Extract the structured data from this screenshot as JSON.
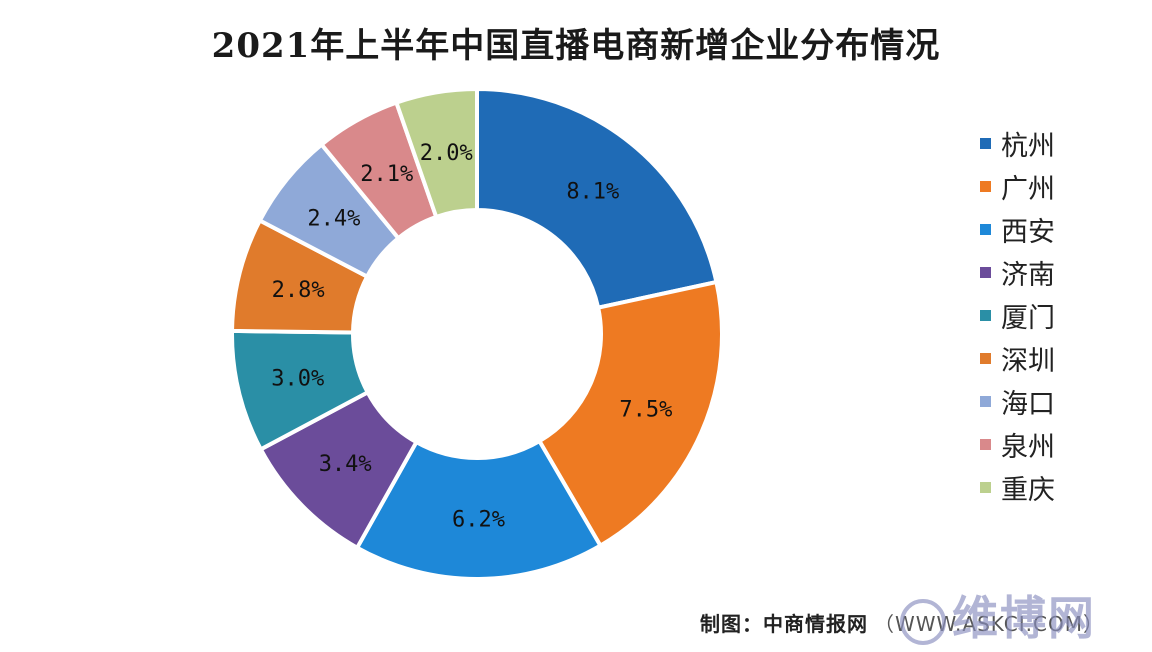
{
  "chart_data": {
    "type": "pie",
    "title": "2021年上半年中国直播电商新增企业分布情况",
    "categories": [
      "杭州",
      "广州",
      "西安",
      "济南",
      "厦门",
      "深圳",
      "海口",
      "泉州",
      "重庆"
    ],
    "values": [
      8.1,
      7.5,
      6.2,
      3.4,
      3.0,
      2.8,
      2.4,
      2.1,
      2.0
    ],
    "data_labels": [
      "8.1%",
      "7.5%",
      "6.2%",
      "3.4%",
      "3.0%",
      "2.8%",
      "2.4%",
      "2.1%",
      "2.0%"
    ],
    "colors": [
      "#1f6bb6",
      "#ee7a22",
      "#1e88d8",
      "#6b4c9a",
      "#2a8fa6",
      "#e07b2c",
      "#8fa9d8",
      "#d9898b",
      "#bcd08e"
    ],
    "legend_position": "right",
    "donut": true
  },
  "footer": {
    "source": "制图：中商情报网",
    "site": "（WWW.ASKCI.COM）"
  },
  "watermark": {
    "text": "维博网"
  }
}
